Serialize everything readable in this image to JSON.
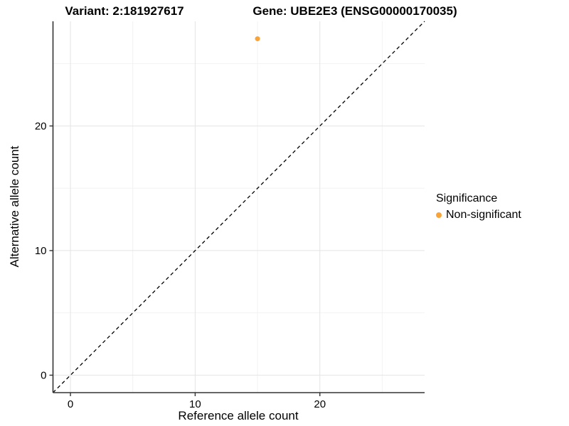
{
  "chart_data": {
    "type": "scatter",
    "title_left": "Variant: 2:181927617",
    "title_right": "Gene: UBE2E3 (ENSG00000170035)",
    "xlabel": "Reference allele count",
    "ylabel": "Alternative allele count",
    "xlim": [
      -1.4,
      28.4
    ],
    "ylim": [
      -1.4,
      28.4
    ],
    "x_ticks": [
      0,
      10,
      20
    ],
    "y_ticks": [
      0,
      10,
      20
    ],
    "x_minor_ticks": [
      5,
      15,
      25
    ],
    "y_minor_ticks": [
      5,
      15,
      25
    ],
    "grid": true,
    "reference_line": {
      "type": "identity",
      "style": "dashed",
      "color": "#000000"
    },
    "series": [
      {
        "name": "Non-significant",
        "color": "#F9A43B",
        "points": [
          {
            "x": 15,
            "y": 27
          }
        ]
      }
    ],
    "legend": {
      "title": "Significance",
      "position": "right",
      "items": [
        {
          "label": "Non-significant",
          "color": "#F9A43B"
        }
      ]
    },
    "colors": {
      "grid_major": "#E4E4E4",
      "grid_minor": "#F2F2F2",
      "axis_line": "#333333",
      "tick_text": "#000000"
    }
  }
}
